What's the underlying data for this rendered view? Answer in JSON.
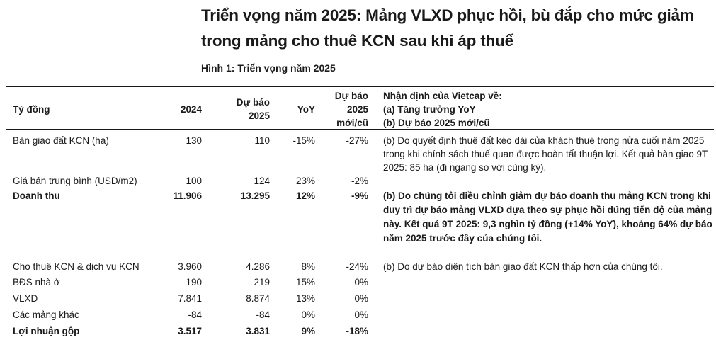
{
  "headline": "Triển vọng năm 2025: Mảng VLXD phục hồi, bù đắp cho mức giảm trong mảng cho thuê KCN sau khi áp thuế",
  "figure_title": "Hình 1: Triển vọng năm 2025",
  "table": {
    "header": {
      "label": "Tỷ đồng",
      "col_2024": "2024",
      "col_2025_l1": "Dự báo",
      "col_2025_l2": "2025",
      "col_yoy": "YoY",
      "col_rev_l1": "Dự báo",
      "col_rev_l2": "2025",
      "col_rev_l3": "mới/cũ",
      "note_l1": "Nhận định của Vietcap về:",
      "note_l2": "(a) Tăng trưởng YoY",
      "note_l3": "(b) Dự báo 2025 mới/cũ"
    },
    "rows": [
      {
        "label": "Bàn giao đất KCN (ha)",
        "v2024": "130",
        "v2025": "110",
        "yoy": "-15%",
        "rev": "-27%",
        "note": "(b) Do quyết định thuê đất kéo dài của khách thuê trong nửa cuối năm 2025 trong khi chính sách thuế quan được hoàn tất thuận lợi. Kết quả bàn giao 9T 2025: 85 ha (đi ngang so với cùng kỳ)."
      },
      {
        "label": "Giá bán trung bình (USD/m2)",
        "v2024": "100",
        "v2025": "124",
        "yoy": "23%",
        "rev": "-2%",
        "note": ""
      },
      {
        "label": "Doanh thu",
        "v2024": "11.906",
        "v2025": "13.295",
        "yoy": "12%",
        "rev": "-9%",
        "note": "(b) Do chúng tôi điều chỉnh giảm dự báo doanh thu mảng KCN trong khi duy trì dự báo mảng VLXD dựa theo sự phục hồi đúng tiến độ của mảng này. Kết quả 9T 2025: 9,3 nghìn tỷ đồng (+14% YoY), khoảng 64% dự báo năm 2025 trước đây của chúng tôi."
      },
      {
        "label": "Cho thuê KCN & dịch vụ KCN",
        "v2024": "3.960",
        "v2025": "4.286",
        "yoy": "8%",
        "rev": "-24%",
        "note": "(b) Do dự báo diện tích bàn giao đất KCN thấp hơn của chúng tôi."
      },
      {
        "label": "BĐS nhà ở",
        "v2024": "190",
        "v2025": "219",
        "yoy": "15%",
        "rev": "0%",
        "note": ""
      },
      {
        "label": "VLXD",
        "v2024": "7.841",
        "v2025": "8.874",
        "yoy": "13%",
        "rev": "0%",
        "note": ""
      },
      {
        "label": "Các mảng khác",
        "v2024": "-84",
        "v2025": "-84",
        "yoy": "0%",
        "rev": "0%",
        "note": ""
      },
      {
        "label": "Lợi nhuận gộp",
        "v2024": "3.517",
        "v2025": "3.831",
        "yoy": "9%",
        "rev": "-18%",
        "note": ""
      }
    ]
  }
}
